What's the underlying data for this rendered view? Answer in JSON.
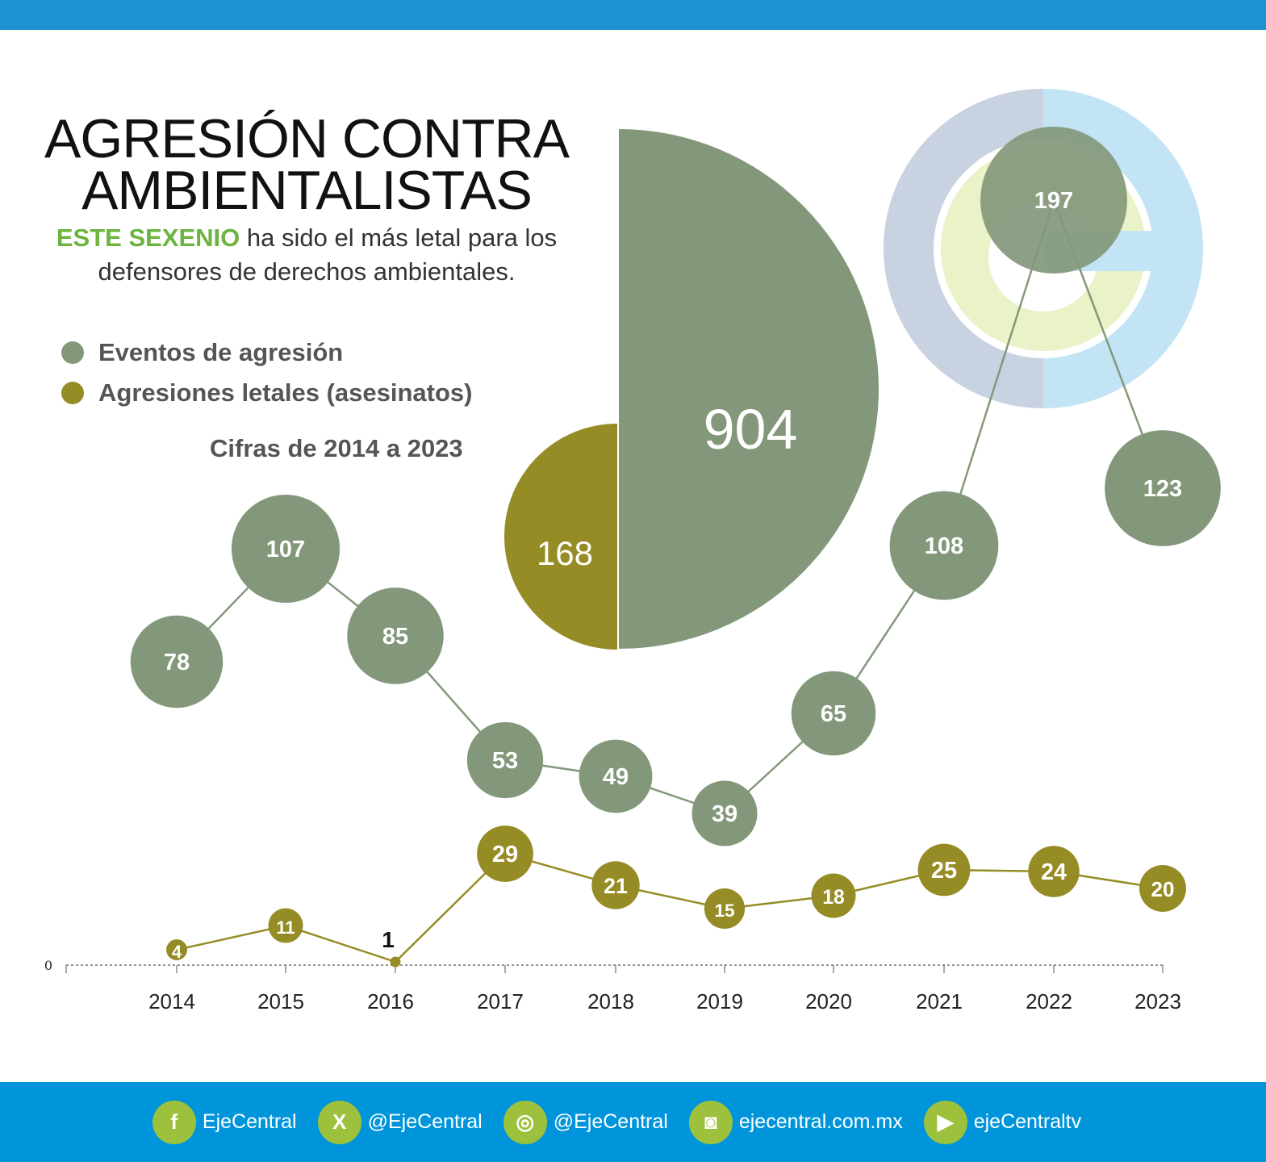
{
  "title": "AGRESIÓN CONTRA AMBIENTALISTAS",
  "subtitle_highlight": "ESTE SEXENIO",
  "subtitle_rest": " ha sido el más letal para los defensores de derechos ambientales.",
  "range_label": "Cifras de 2014 a 2023",
  "colors": {
    "events": "#83987b",
    "lethal": "#968c26",
    "highlight": "#6cb33f",
    "bar": "#1b93d2",
    "icon_bg": "#9dc13c"
  },
  "chart_data": {
    "type": "bubble-line",
    "categories": [
      "2014",
      "2015",
      "2016",
      "2017",
      "2018",
      "2019",
      "2020",
      "2021",
      "2022",
      "2023"
    ],
    "series": [
      {
        "name": "Eventos de agresión",
        "values": [
          78,
          107,
          85,
          53,
          49,
          39,
          65,
          108,
          197,
          123
        ]
      },
      {
        "name": "Agresiones letales (asesinatos)",
        "values": [
          4,
          11,
          1,
          29,
          21,
          15,
          18,
          25,
          24,
          20
        ]
      }
    ],
    "totals": {
      "events": "904",
      "lethal": "168"
    },
    "y_zero_label": "0",
    "legend_position": "top-left",
    "grid": false
  },
  "footer": [
    {
      "icon": "facebook-icon",
      "glyph": "f",
      "label": "EjeCentral"
    },
    {
      "icon": "x-icon",
      "glyph": "X",
      "label": "@EjeCentral"
    },
    {
      "icon": "location-pin-icon",
      "glyph": "◎",
      "label": "@EjeCentral"
    },
    {
      "icon": "instagram-icon",
      "glyph": "◙",
      "label": "ejecentral.com.mx"
    },
    {
      "icon": "youtube-icon",
      "glyph": "▶",
      "label": "ejeCentraltv"
    }
  ]
}
